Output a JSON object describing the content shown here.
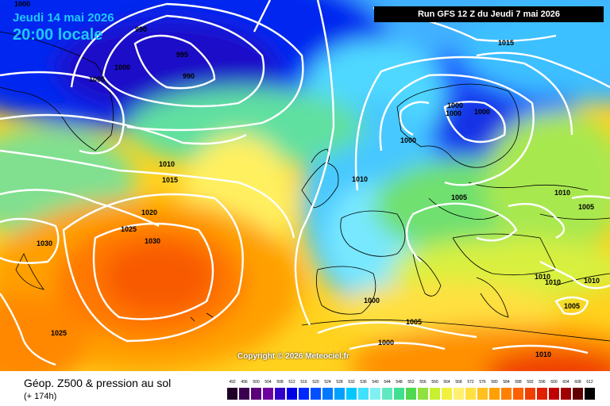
{
  "header": {
    "date": "Jeudi 14 mai 2026",
    "time": "20:00 locale",
    "run": "Run GFS 12 Z du Jeudi 7 mai 2026"
  },
  "copyright": "Copyright © 2026 Meteociel.fr",
  "footer": {
    "product": "Géop. Z500 & pression au sol",
    "lead": "(+ 174h)"
  },
  "scale": {
    "labels": [
      "492",
      "496",
      "500",
      "504",
      "508",
      "512",
      "516",
      "520",
      "524",
      "528",
      "532",
      "536",
      "540",
      "544",
      "548",
      "552",
      "556",
      "560",
      "564",
      "568",
      "572",
      "576",
      "580",
      "584",
      "588",
      "592",
      "596",
      "600",
      "604",
      "608",
      "612"
    ],
    "colors": [
      "#200028",
      "#3c0050",
      "#5a0078",
      "#6e00a0",
      "#3200c8",
      "#0000e6",
      "#0028ff",
      "#0050ff",
      "#0078ff",
      "#00a0ff",
      "#00c8ff",
      "#40e0ff",
      "#80f0f0",
      "#60e8c0",
      "#40e090",
      "#50d850",
      "#90e040",
      "#c8f030",
      "#f0f040",
      "#fff070",
      "#ffe040",
      "#ffc020",
      "#ffa000",
      "#ff8000",
      "#ff6000",
      "#f04000",
      "#e02000",
      "#c00000",
      "#a00000",
      "#600000",
      "#000000"
    ]
  },
  "isobars": [
    {
      "label": "1000"
    },
    {
      "label": "1005"
    },
    {
      "label": "1000"
    },
    {
      "label": "990"
    },
    {
      "label": "995"
    },
    {
      "label": "990"
    },
    {
      "label": "1010"
    },
    {
      "label": "1015"
    },
    {
      "label": "1020"
    },
    {
      "label": "1025"
    },
    {
      "label": "1030"
    },
    {
      "label": "1030"
    },
    {
      "label": "1025"
    },
    {
      "label": "1010"
    },
    {
      "label": "1000"
    },
    {
      "label": "1000"
    },
    {
      "label": "1000"
    },
    {
      "label": "1000"
    },
    {
      "label": "1005"
    },
    {
      "label": "1015"
    },
    {
      "label": "1010"
    },
    {
      "label": "1005"
    },
    {
      "label": "1010"
    },
    {
      "label": "1010"
    },
    {
      "label": "1010"
    },
    {
      "label": "1005"
    },
    {
      "label": "1000"
    },
    {
      "label": "1005"
    },
    {
      "label": "1000"
    },
    {
      "label": "1010"
    }
  ]
}
